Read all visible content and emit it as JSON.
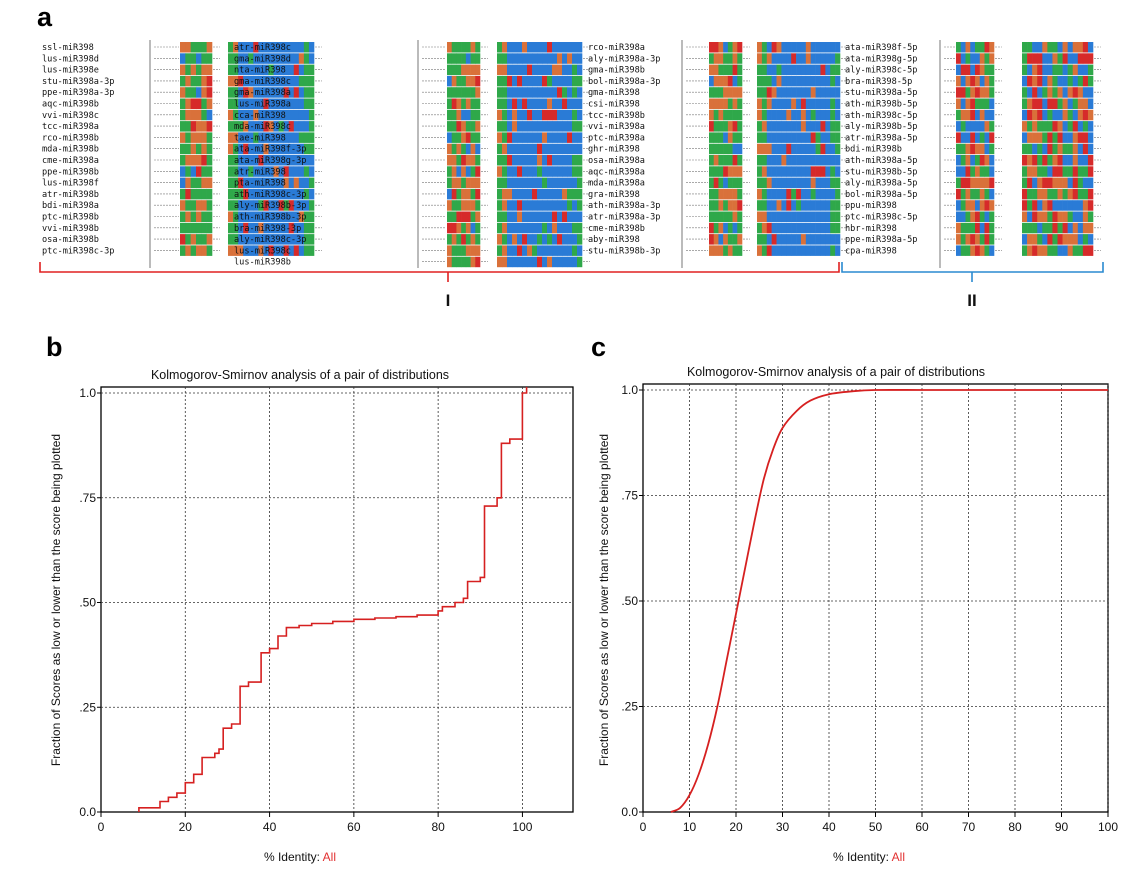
{
  "panels": {
    "a": "a",
    "b": "b",
    "c": "c"
  },
  "alignment": {
    "colors": {
      "G": "#2fa84a",
      "A": "#d9713a",
      "U": "#d62a2a",
      "C": "#2a7bd6"
    },
    "blocks": [
      {
        "names": [
          "ssl-miR398",
          "lus-miR398d",
          "lus-miR398e",
          "stu-miR398a-3p",
          "ppe-miR398a-3p",
          "aqc-miR398b",
          "vvi-miR398c",
          "tcc-miR398a",
          "rco-miR398b",
          "mda-miR398b",
          "cme-miR398a",
          "ppe-miR398b",
          "lus-miR398f",
          "atr-miR398b",
          "bdi-miR398a",
          "ptc-miR398b",
          "vvi-miR398b",
          "osa-miR398b",
          "ptc-miR398c-3p"
        ]
      },
      {
        "names": [
          "atr-miR398c",
          "gma-miR398d",
          "nta-miR398",
          "gma-miR398c",
          "gma-miR398a",
          "lus-miR398a",
          "cca-miR398",
          "mda-miR398c",
          "tae-miR398",
          "ata-miR398f-3p",
          "ata-miR398g-3p",
          "atr-miR398",
          "pta-miR398",
          "ath-miR398c-3p",
          "aly-miR398b-3p",
          "ath-miR398b-3p",
          "bra-miR398-3p",
          "aly-miR398c-3p",
          "lus-miR398c",
          "lus-miR398b"
        ]
      },
      {
        "names": [
          "rco-miR398a",
          "aly-miR398a-3p",
          "gma-miR398b",
          "bol-miR398a-3p",
          "gma-miR398",
          "csi-miR398",
          "tcc-miR398b",
          "vvi-miR398a",
          "ptc-miR398a",
          "ghr-miR398",
          "osa-miR398a",
          "aqc-miR398a",
          "mda-miR398a",
          "gra-miR398",
          "ath-miR398a-3p",
          "atr-miR398a-3p",
          "cme-miR398b",
          "aby-miR398",
          "stu-miR398b-3p"
        ]
      },
      {
        "names": [
          "ata-miR398f-5p",
          "ata-miR398g-5p",
          "aly-miR398c-5p",
          "bra-miR398-5p",
          "stu-miR398a-5p",
          "ath-miR398b-5p",
          "ath-miR398c-5p",
          "aly-miR398b-5p",
          "atr-miR398a-5p",
          "bdi-miR398b",
          "ath-miR398a-5p",
          "stu-miR398b-5p",
          "aly-miR398a-5p",
          "bol-miR398a-5p",
          "ppu-miR398",
          "ptc-miR398c-5p",
          "hbr-miR398",
          "ppe-miR398a-5p",
          "cpa-miR398"
        ]
      }
    ],
    "groups": [
      {
        "label": "I",
        "color": "#e02020"
      },
      {
        "label": "II",
        "color": "#2a8ad0"
      }
    ]
  },
  "chart_data": [
    {
      "type": "line",
      "panel": "b",
      "title": "Kolmogorov-Smirnov analysis of a pair of distributions",
      "xlabel": "% Identity:",
      "xlabel_value": "All",
      "ylabel": "Fraction of Scores as low or lower than the score being plotted",
      "xlim": [
        0,
        112
      ],
      "ylim": [
        0,
        1.0
      ],
      "x_ticks": [
        0,
        20,
        40,
        60,
        80,
        100
      ],
      "y_ticks": [
        0.0,
        0.25,
        0.5,
        0.75,
        1.0
      ],
      "y_tick_labels": [
        "0.0",
        ".25",
        ".50",
        ".75",
        "1.0"
      ],
      "grid": true,
      "step": true,
      "series": [
        {
          "color": "#d62020",
          "x": [
            9,
            14,
            16,
            18,
            20,
            22,
            24,
            27,
            28,
            29,
            31,
            33,
            35,
            38,
            40,
            42,
            44,
            47,
            50,
            55,
            60,
            65,
            70,
            75,
            80,
            81,
            84,
            86,
            87,
            90,
            91,
            94,
            95,
            97,
            100,
            101
          ],
          "y": [
            0.01,
            0.025,
            0.035,
            0.045,
            0.07,
            0.09,
            0.13,
            0.14,
            0.15,
            0.2,
            0.21,
            0.3,
            0.31,
            0.38,
            0.39,
            0.42,
            0.44,
            0.445,
            0.45,
            0.455,
            0.46,
            0.463,
            0.466,
            0.47,
            0.48,
            0.49,
            0.5,
            0.51,
            0.55,
            0.56,
            0.73,
            0.75,
            0.88,
            0.89,
            1.0,
            1.0
          ]
        }
      ]
    },
    {
      "type": "line",
      "panel": "c",
      "title": "Kolmogorov-Smirnov analysis of a pair of distributions",
      "xlabel": "% Identity:",
      "xlabel_value": "All",
      "ylabel": "Fraction of Scores as low or lower than the score being plotted",
      "xlim": [
        0,
        100
      ],
      "ylim": [
        0,
        1.0
      ],
      "x_ticks": [
        0,
        10,
        20,
        30,
        40,
        50,
        60,
        70,
        80,
        90,
        100
      ],
      "y_ticks": [
        0.0,
        0.25,
        0.5,
        0.75,
        1.0
      ],
      "y_tick_labels": [
        "0.0",
        ".25",
        ".50",
        ".75",
        "1.0"
      ],
      "grid": true,
      "step": false,
      "series": [
        {
          "color": "#d62020",
          "x": [
            6,
            8,
            10,
            12,
            14,
            16,
            18,
            20,
            22,
            24,
            26,
            28,
            30,
            33,
            36,
            40,
            45,
            50,
            60,
            70,
            80,
            90,
            100
          ],
          "y": [
            0.0,
            0.01,
            0.04,
            0.09,
            0.16,
            0.25,
            0.36,
            0.47,
            0.58,
            0.69,
            0.79,
            0.86,
            0.91,
            0.95,
            0.975,
            0.99,
            0.997,
            1.0,
            1.0,
            1.0,
            1.0,
            1.0,
            1.0
          ]
        }
      ]
    }
  ]
}
